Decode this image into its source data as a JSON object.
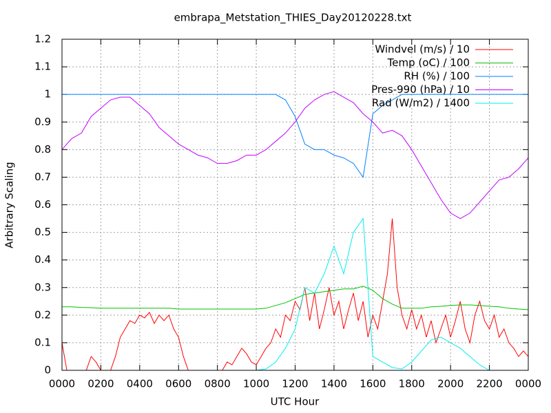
{
  "chart_data": {
    "type": "line",
    "title": "embrapa_Metstation_THIES_Day20120228.txt",
    "xlabel": "UTC Hour",
    "ylabel": "Arbitrary Scaling",
    "xlim": [
      0,
      24
    ],
    "ylim": [
      0,
      1.2
    ],
    "xticks": [
      {
        "value": 0,
        "label": "0000"
      },
      {
        "value": 2,
        "label": "0200"
      },
      {
        "value": 4,
        "label": "0400"
      },
      {
        "value": 6,
        "label": "0600"
      },
      {
        "value": 8,
        "label": "0800"
      },
      {
        "value": 10,
        "label": "1000"
      },
      {
        "value": 12,
        "label": "1200"
      },
      {
        "value": 14,
        "label": "1400"
      },
      {
        "value": 16,
        "label": "1600"
      },
      {
        "value": 18,
        "label": "1800"
      },
      {
        "value": 20,
        "label": "2000"
      },
      {
        "value": 22,
        "label": "2200"
      },
      {
        "value": 24,
        "label": "0000"
      }
    ],
    "yticks": [
      0,
      0.1,
      0.2,
      0.3,
      0.4,
      0.5,
      0.6,
      0.7,
      0.8,
      0.9,
      1,
      1.1,
      1.2
    ],
    "grid": true,
    "legend": "upper right",
    "x": [
      0,
      0.5,
      1,
      1.5,
      2,
      2.5,
      3,
      3.5,
      4,
      4.5,
      5,
      5.5,
      6,
      6.5,
      7,
      7.5,
      8,
      8.5,
      9,
      9.5,
      10,
      10.5,
      11,
      11.5,
      12,
      12.5,
      13,
      13.5,
      14,
      14.5,
      15,
      15.5,
      16,
      16.5,
      17,
      17.5,
      18,
      18.5,
      19,
      19.5,
      20,
      20.5,
      21,
      21.5,
      22,
      22.5,
      23,
      23.5,
      24
    ],
    "series": [
      {
        "name": "Windvel (m/s) / 10",
        "color": "#ff0000",
        "x": [
          0,
          0.25,
          0.5,
          0.75,
          1,
          1.25,
          1.5,
          1.75,
          2,
          2.25,
          2.5,
          2.75,
          3,
          3.25,
          3.5,
          3.75,
          4,
          4.25,
          4.5,
          4.75,
          5,
          5.25,
          5.5,
          5.75,
          6,
          6.25,
          6.5,
          6.75,
          7,
          7.25,
          7.5,
          7.75,
          8,
          8.25,
          8.5,
          8.75,
          9,
          9.25,
          9.5,
          9.75,
          10,
          10.25,
          10.5,
          10.75,
          11,
          11.25,
          11.5,
          11.75,
          12,
          12.25,
          12.5,
          12.75,
          13,
          13.25,
          13.5,
          13.75,
          14,
          14.25,
          14.5,
          14.75,
          15,
          15.25,
          15.5,
          15.75,
          16,
          16.25,
          16.5,
          16.75,
          17,
          17.25,
          17.5,
          17.75,
          18,
          18.25,
          18.5,
          18.75,
          19,
          19.25,
          19.5,
          19.75,
          20,
          20.25,
          20.5,
          20.75,
          21,
          21.25,
          21.5,
          21.75,
          22,
          22.25,
          22.5,
          22.75,
          23,
          23.25,
          23.5,
          23.75,
          24
        ],
        "values": [
          0.1,
          0,
          0,
          0,
          0,
          0,
          0.05,
          0.03,
          0,
          0,
          0,
          0.05,
          0.12,
          0.15,
          0.18,
          0.17,
          0.2,
          0.19,
          0.21,
          0.17,
          0.2,
          0.18,
          0.2,
          0.15,
          0.12,
          0.05,
          0,
          0,
          0,
          0,
          0,
          0,
          0,
          0,
          0.03,
          0.02,
          0.05,
          0.08,
          0.06,
          0.03,
          0.02,
          0.05,
          0.08,
          0.1,
          0.15,
          0.12,
          0.2,
          0.18,
          0.25,
          0.22,
          0.3,
          0.18,
          0.28,
          0.15,
          0.22,
          0.3,
          0.2,
          0.25,
          0.15,
          0.22,
          0.28,
          0.18,
          0.25,
          0.12,
          0.2,
          0.15,
          0.25,
          0.35,
          0.55,
          0.3,
          0.2,
          0.15,
          0.22,
          0.15,
          0.2,
          0.12,
          0.18,
          0.1,
          0.15,
          0.2,
          0.12,
          0.18,
          0.25,
          0.15,
          0.1,
          0.2,
          0.25,
          0.18,
          0.15,
          0.2,
          0.12,
          0.15,
          0.1,
          0.08,
          0.05,
          0.07,
          0.05
        ]
      },
      {
        "name": "Temp (oC) / 100",
        "color": "#00c000",
        "values": [
          0.23,
          0.23,
          0.228,
          0.227,
          0.225,
          0.225,
          0.225,
          0.225,
          0.225,
          0.225,
          0.225,
          0.225,
          0.222,
          0.222,
          0.222,
          0.222,
          0.222,
          0.222,
          0.222,
          0.222,
          0.222,
          0.225,
          0.235,
          0.245,
          0.26,
          0.275,
          0.28,
          0.285,
          0.29,
          0.295,
          0.295,
          0.305,
          0.29,
          0.26,
          0.24,
          0.225,
          0.225,
          0.225,
          0.23,
          0.232,
          0.235,
          0.237,
          0.237,
          0.235,
          0.232,
          0.23,
          0.225,
          0.222,
          0.22
        ]
      },
      {
        "name": "RH (%) / 100",
        "color": "#0080ff",
        "values": [
          1,
          1,
          1,
          1,
          1,
          1,
          1,
          1,
          1,
          1,
          1,
          1,
          1,
          1,
          1,
          1,
          1,
          1,
          1,
          1,
          1,
          1,
          1,
          0.98,
          0.92,
          0.82,
          0.8,
          0.8,
          0.78,
          0.77,
          0.75,
          0.7,
          0.93,
          0.96,
          0.98,
          1,
          1,
          1,
          1,
          1,
          1,
          1,
          1,
          1,
          1,
          1,
          1,
          1,
          1
        ]
      },
      {
        "name": "Pres-990 (hPa) / 10",
        "color": "#c000ff",
        "values": [
          0.8,
          0.84,
          0.86,
          0.92,
          0.95,
          0.98,
          0.99,
          0.99,
          0.96,
          0.93,
          0.88,
          0.85,
          0.82,
          0.8,
          0.78,
          0.77,
          0.75,
          0.75,
          0.76,
          0.78,
          0.78,
          0.8,
          0.83,
          0.86,
          0.9,
          0.95,
          0.98,
          1,
          1.01,
          0.99,
          0.97,
          0.93,
          0.9,
          0.86,
          0.87,
          0.85,
          0.8,
          0.74,
          0.68,
          0.62,
          0.57,
          0.55,
          0.57,
          0.61,
          0.65,
          0.69,
          0.7,
          0.73,
          0.77
        ]
      },
      {
        "name": "Rad (W/m2) / 1400",
        "color": "#00eeee",
        "values": [
          0,
          0,
          0,
          0,
          0,
          0,
          0,
          0,
          0,
          0,
          0,
          0,
          0,
          0,
          0,
          0,
          0,
          0,
          0,
          0,
          0,
          0.005,
          0.03,
          0.08,
          0.15,
          0.3,
          0.28,
          0.35,
          0.45,
          0.35,
          0.5,
          0.55,
          0.05,
          0.03,
          0.01,
          0.005,
          0.03,
          0.07,
          0.11,
          0.12,
          0.1,
          0.08,
          0.05,
          0.02,
          0,
          0,
          0,
          0,
          0
        ]
      }
    ]
  }
}
